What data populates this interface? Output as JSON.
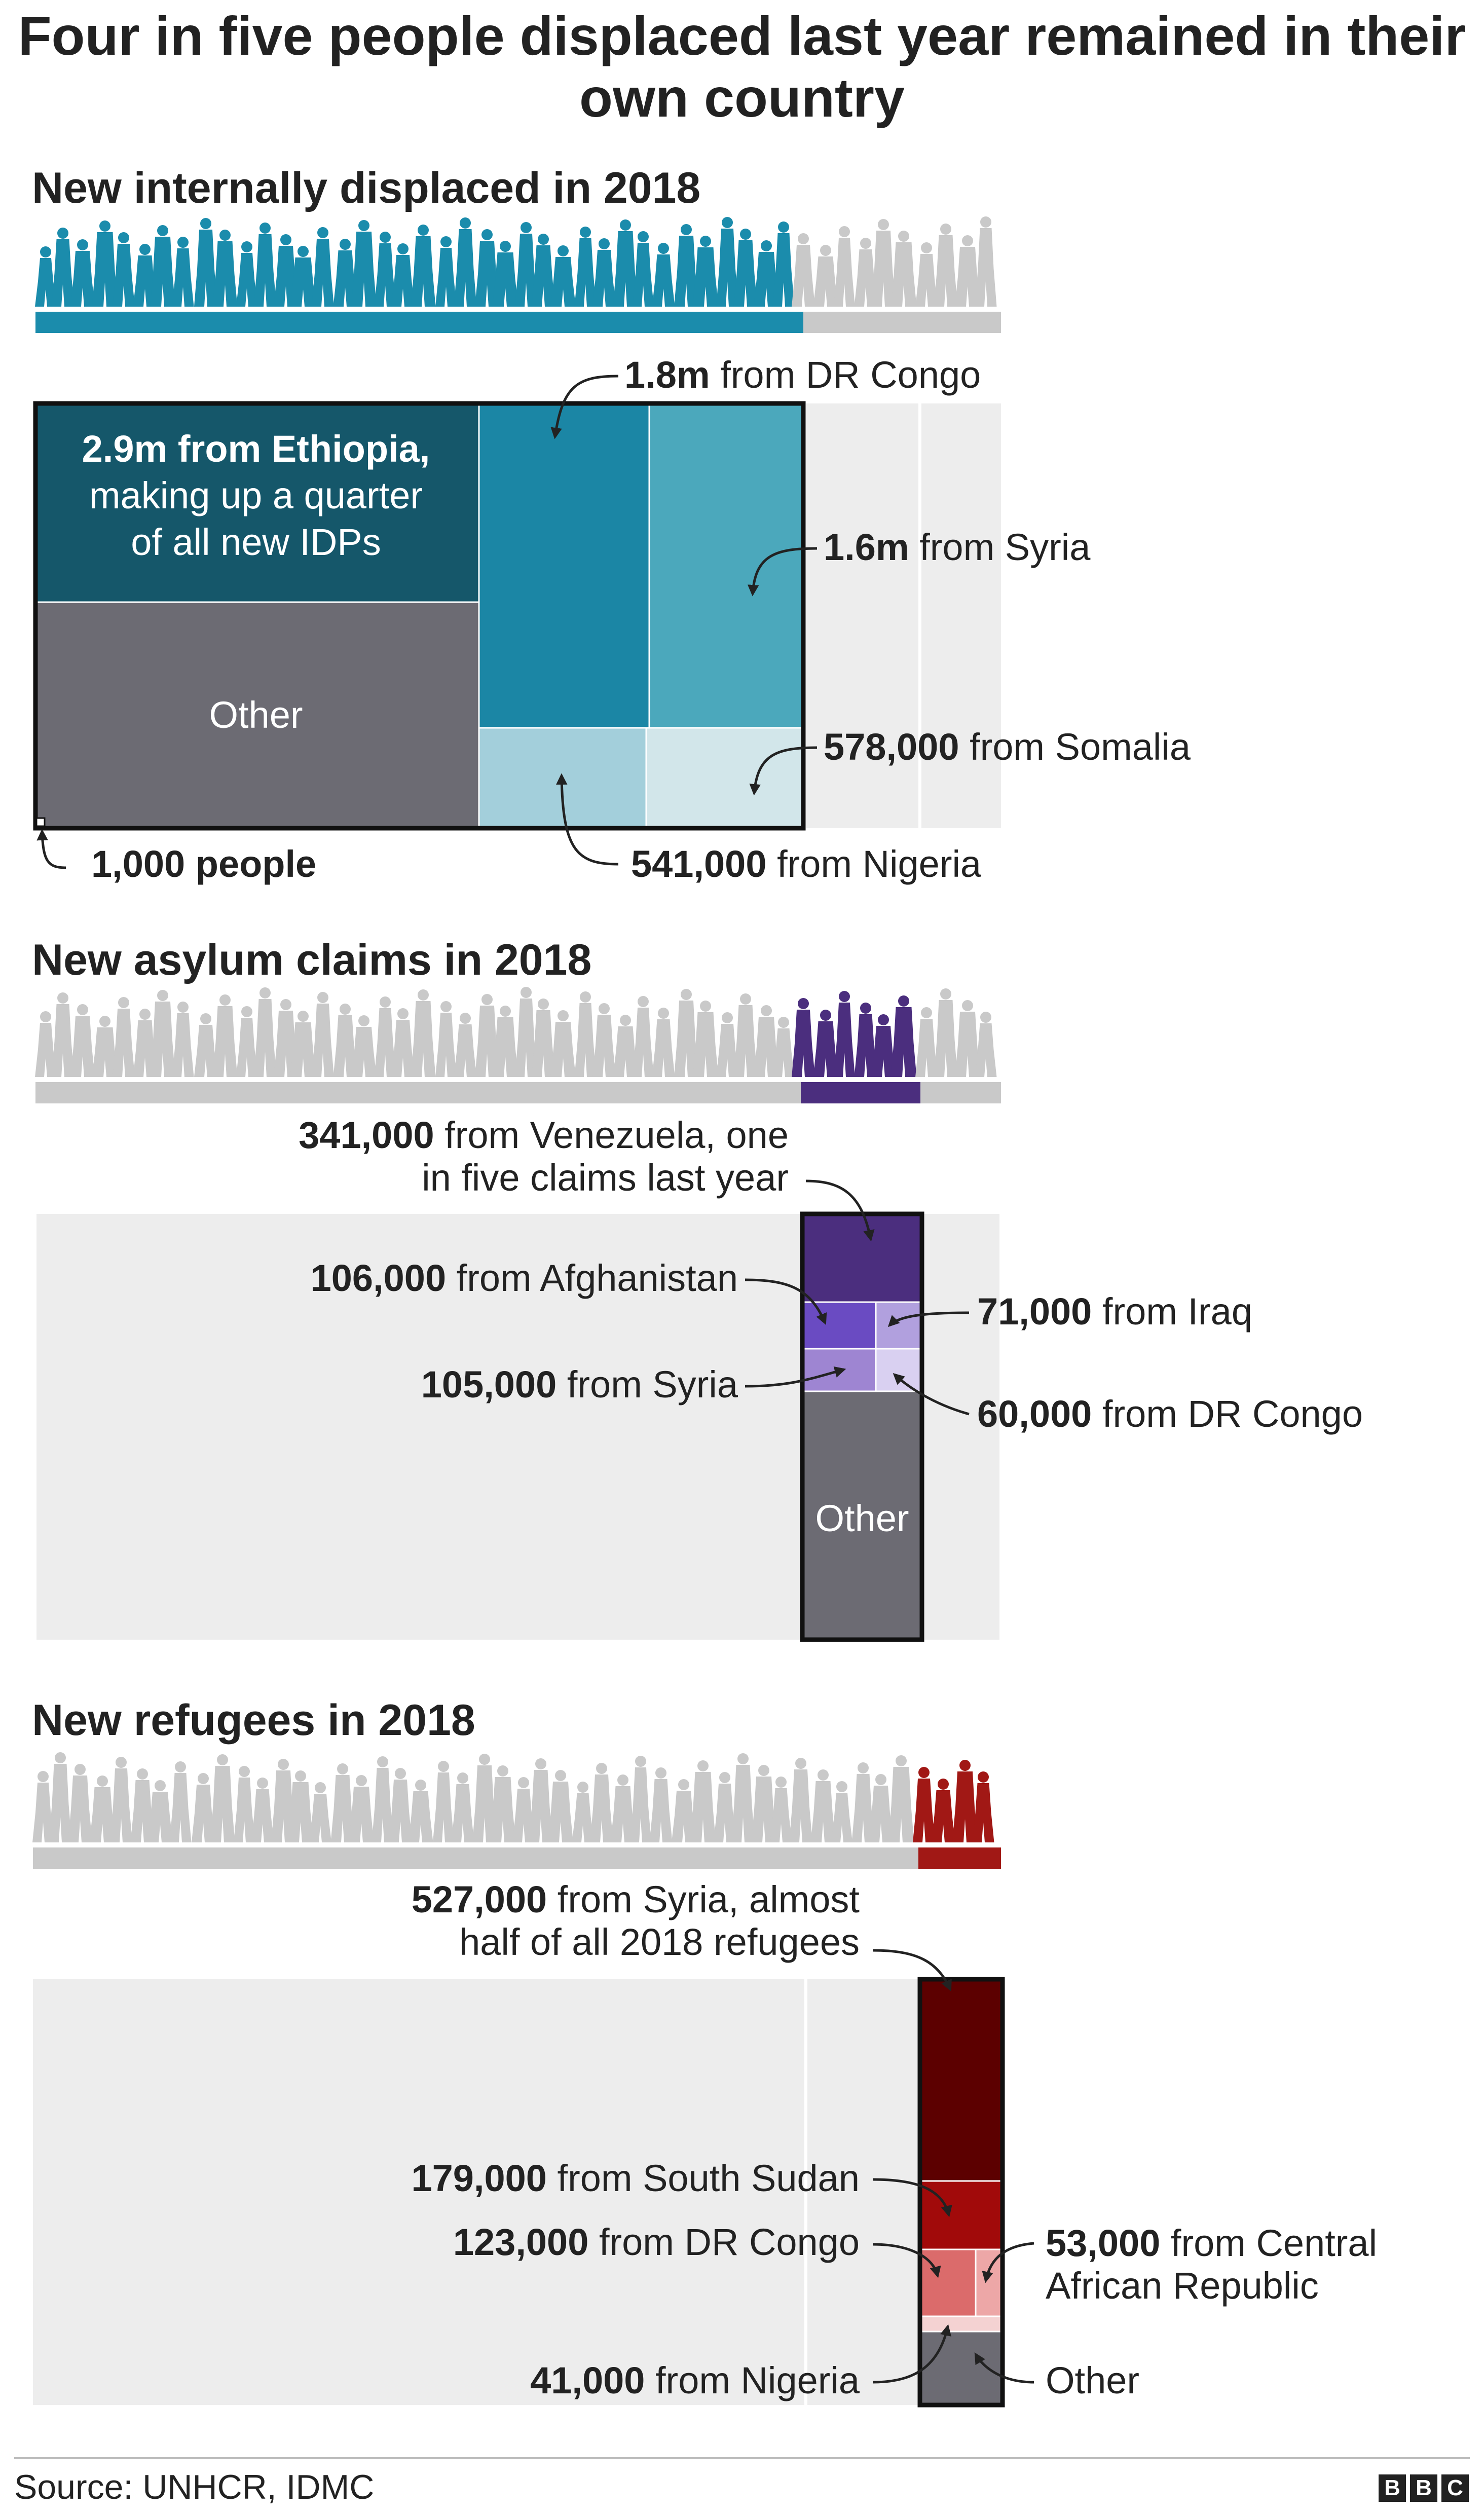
{
  "title": "Four in five people displaced last year remained in their own country",
  "footer": {
    "source": "Source: UNHCR, IDMC",
    "logo": [
      "B",
      "B",
      "C"
    ]
  },
  "key": {
    "value": "1,000 people"
  },
  "colors": {
    "idp": "#1b8cac",
    "asylum": "#4b2e7e",
    "refugee": "#a11815",
    "grey": "#c9c9c9",
    "bg": "#ededed",
    "other": "#6c6b73"
  },
  "icons": [
    "people-silhouette-icon",
    "arrow-icon"
  ],
  "chart_data": [
    {
      "type": "treemap",
      "title": "New internally displaced in 2018",
      "in_box_text": [
        "2.9m from Ethiopia,",
        "making up a quarter",
        "of all new IDPs"
      ],
      "other_label": "Other",
      "series": [
        {
          "name": "Ethiopia",
          "value": 2900000,
          "bold": "2.9m",
          "text": "from Ethiopia, making up a quarter of all new IDPs"
        },
        {
          "name": "DR Congo",
          "value": 1800000,
          "bold": "1.8m",
          "text": "from DR Congo"
        },
        {
          "name": "Syria",
          "value": 1600000,
          "bold": "1.6m",
          "text": "from Syria"
        },
        {
          "name": "Somalia",
          "value": 578000,
          "bold": "578,000",
          "text": "from Somalia"
        },
        {
          "name": "Nigeria",
          "value": 541000,
          "bold": "541,000",
          "text": "from Nigeria"
        },
        {
          "name": "Other",
          "value": null
        }
      ]
    },
    {
      "type": "treemap",
      "title": "New asylum claims in 2018",
      "other_label": "Other",
      "series": [
        {
          "name": "Venezuela",
          "value": 341000,
          "bold": "341,000",
          "text": "from Venezuela, one",
          "text2": "in five claims last year"
        },
        {
          "name": "Afghanistan",
          "value": 106000,
          "bold": "106,000",
          "text": "from Afghanistan"
        },
        {
          "name": "Iraq",
          "value": 71000,
          "bold": "71,000",
          "text": "from Iraq"
        },
        {
          "name": "Syria",
          "value": 105000,
          "bold": "105,000",
          "text": "from Syria"
        },
        {
          "name": "DR Congo",
          "value": 60000,
          "bold": "60,000",
          "text": "from DR Congo"
        },
        {
          "name": "Other",
          "value": null
        }
      ]
    },
    {
      "type": "treemap",
      "title": "New refugees in 2018",
      "series": [
        {
          "name": "Syria",
          "value": 527000,
          "bold": "527,000",
          "text": "from Syria, almost",
          "text2": "half of all 2018 refugees"
        },
        {
          "name": "South Sudan",
          "value": 179000,
          "bold": "179,000",
          "text": "from South Sudan"
        },
        {
          "name": "DR Congo",
          "value": 123000,
          "bold": "123,000",
          "text": "from DR Congo"
        },
        {
          "name": "Central African Republic",
          "value": 53000,
          "bold": "53,000",
          "text": "from Central",
          "text2": "African Republic"
        },
        {
          "name": "Nigeria",
          "value": 41000,
          "bold": "41,000",
          "text": "from Nigeria"
        },
        {
          "name": "Other",
          "value": null,
          "text": "Other"
        }
      ]
    }
  ]
}
